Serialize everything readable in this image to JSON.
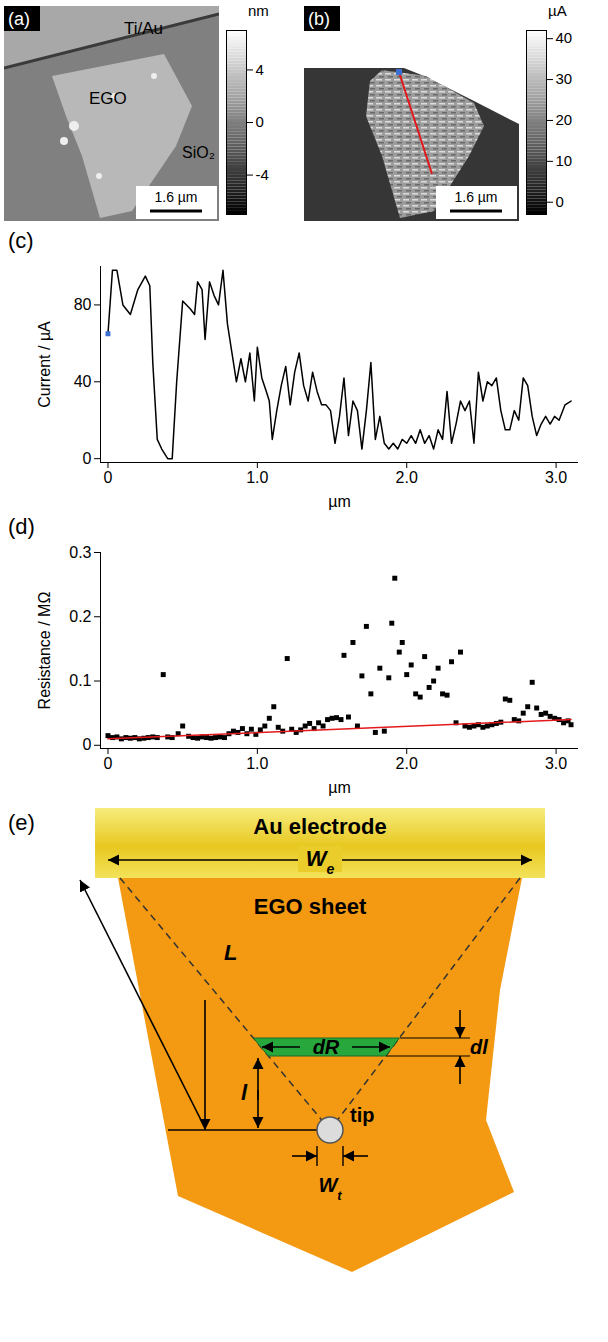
{
  "images": [
    {
      "panel": "(a)",
      "labels": [
        "Ti/Au",
        "EGO",
        "SiO₂"
      ],
      "scale_bar": "1.6 µm",
      "colorbar": {
        "label": "nm",
        "range": [
          -7,
          7
        ],
        "ticks": [
          4,
          0,
          -4
        ]
      }
    },
    {
      "panel": "(b)",
      "scale_bar": "1.6 µm",
      "colorbar": {
        "label": "µA",
        "range": [
          -3,
          42
        ],
        "ticks": [
          40,
          30,
          20,
          10,
          0
        ]
      }
    }
  ],
  "chart_data": [
    {
      "type": "line",
      "panel": "(c)",
      "x_label": "µm",
      "y_label": "Current / µA",
      "xlim": [
        -0.05,
        3.15
      ],
      "ylim": [
        -2,
        100
      ],
      "xticks": [
        0,
        {
          "value": 1,
          "label": "1.0"
        },
        {
          "value": 2,
          "label": "2.0"
        },
        {
          "value": 3,
          "label": "3.0"
        }
      ],
      "yticks": [
        0,
        40,
        80
      ],
      "x": [
        0,
        0.03,
        0.06,
        0.1,
        0.15,
        0.2,
        0.25,
        0.28,
        0.3,
        0.33,
        0.36,
        0.4,
        0.43,
        0.46,
        0.5,
        0.55,
        0.58,
        0.6,
        0.63,
        0.65,
        0.68,
        0.71,
        0.74,
        0.77,
        0.8,
        0.83,
        0.86,
        0.89,
        0.92,
        0.95,
        0.98,
        1.0,
        1.03,
        1.06,
        1.08,
        1.1,
        1.13,
        1.16,
        1.19,
        1.22,
        1.25,
        1.28,
        1.31,
        1.34,
        1.37,
        1.4,
        1.43,
        1.46,
        1.49,
        1.52,
        1.55,
        1.58,
        1.61,
        1.64,
        1.67,
        1.7,
        1.73,
        1.76,
        1.79,
        1.82,
        1.85,
        1.88,
        1.91,
        1.94,
        1.97,
        2.0,
        2.03,
        2.06,
        2.09,
        2.12,
        2.15,
        2.18,
        2.21,
        2.24,
        2.27,
        2.3,
        2.33,
        2.36,
        2.39,
        2.42,
        2.45,
        2.48,
        2.51,
        2.54,
        2.57,
        2.6,
        2.63,
        2.66,
        2.69,
        2.72,
        2.75,
        2.78,
        2.81,
        2.84,
        2.87,
        2.9,
        2.93,
        2.96,
        2.99,
        3.02,
        3.06,
        3.1
      ],
      "series": [
        {
          "color": "#000000",
          "values": [
            65,
            98,
            98,
            80,
            75,
            88,
            95,
            90,
            50,
            10,
            5,
            0,
            0,
            40,
            82,
            78,
            75,
            92,
            88,
            62,
            92,
            85,
            80,
            98,
            70,
            55,
            40,
            52,
            40,
            55,
            30,
            58,
            42,
            35,
            30,
            10,
            25,
            38,
            48,
            28,
            45,
            55,
            38,
            30,
            45,
            35,
            28,
            28,
            25,
            8,
            22,
            42,
            12,
            30,
            25,
            5,
            25,
            50,
            10,
            22,
            8,
            5,
            8,
            5,
            10,
            8,
            12,
            8,
            15,
            8,
            12,
            5,
            15,
            10,
            35,
            8,
            18,
            30,
            25,
            30,
            8,
            45,
            30,
            40,
            38,
            42,
            25,
            15,
            15,
            25,
            20,
            42,
            38,
            22,
            12,
            18,
            22,
            18,
            22,
            20,
            28,
            30
          ]
        },
        {
          "type": "scatter",
          "marker": "square",
          "color": "#3b6fd1",
          "x": [
            0
          ],
          "values": [
            65
          ]
        }
      ]
    },
    {
      "type": "scatter",
      "panel": "(d)",
      "x_label": "µm",
      "y_label": "Resistance / MΩ",
      "xlim": [
        -0.05,
        3.15
      ],
      "ylim": [
        -0.005,
        0.3
      ],
      "xticks": [
        0,
        {
          "value": 1,
          "label": "1.0"
        },
        {
          "value": 2,
          "label": "2.0"
        },
        {
          "value": 3,
          "label": "3.0"
        }
      ],
      "yticks": [
        0,
        0.1,
        0.2,
        0.3
      ],
      "series": [
        {
          "marker": "square",
          "color": "#000000",
          "x": [
            0,
            0.03,
            0.06,
            0.09,
            0.12,
            0.15,
            0.18,
            0.21,
            0.24,
            0.27,
            0.3,
            0.33,
            0.37,
            0.4,
            0.43,
            0.47,
            0.5,
            0.54,
            0.57,
            0.6,
            0.63,
            0.66,
            0.69,
            0.72,
            0.75,
            0.78,
            0.81,
            0.84,
            0.87,
            0.9,
            0.93,
            0.96,
            0.99,
            1.02,
            1.05,
            1.08,
            1.11,
            1.14,
            1.17,
            1.2,
            1.23,
            1.26,
            1.29,
            1.32,
            1.35,
            1.38,
            1.41,
            1.44,
            1.47,
            1.5,
            1.53,
            1.56,
            1.58,
            1.61,
            1.64,
            1.67,
            1.7,
            1.73,
            1.76,
            1.79,
            1.82,
            1.85,
            1.88,
            1.9,
            1.92,
            1.95,
            1.97,
            2.0,
            2.03,
            2.06,
            2.09,
            2.12,
            2.15,
            2.18,
            2.21,
            2.24,
            2.27,
            2.3,
            2.33,
            2.36,
            2.39,
            2.42,
            2.45,
            2.48,
            2.51,
            2.54,
            2.57,
            2.6,
            2.63,
            2.66,
            2.69,
            2.72,
            2.75,
            2.78,
            2.81,
            2.84,
            2.87,
            2.9,
            2.93,
            2.96,
            2.99,
            3.02,
            3.05,
            3.08,
            3.1
          ],
          "values": [
            0.015,
            0.012,
            0.013,
            0.01,
            0.012,
            0.011,
            0.012,
            0.01,
            0.011,
            0.012,
            0.013,
            0.012,
            0.11,
            0.013,
            0.012,
            0.018,
            0.03,
            0.014,
            0.012,
            0.011,
            0.013,
            0.012,
            0.011,
            0.012,
            0.013,
            0.012,
            0.018,
            0.022,
            0.02,
            0.026,
            0.018,
            0.025,
            0.017,
            0.024,
            0.03,
            0.042,
            0.06,
            0.028,
            0.022,
            0.135,
            0.025,
            0.02,
            0.024,
            0.03,
            0.034,
            0.026,
            0.035,
            0.03,
            0.04,
            0.042,
            0.043,
            0.04,
            0.14,
            0.044,
            0.16,
            0.03,
            0.108,
            0.185,
            0.08,
            0.02,
            0.12,
            0.022,
            0.105,
            0.19,
            0.26,
            0.145,
            0.16,
            0.11,
            0.125,
            0.08,
            0.075,
            0.138,
            0.09,
            0.1,
            0.12,
            0.08,
            0.078,
            0.13,
            0.035,
            0.145,
            0.03,
            0.028,
            0.03,
            0.032,
            0.028,
            0.03,
            0.032,
            0.034,
            0.036,
            0.072,
            0.07,
            0.04,
            0.038,
            0.05,
            0.06,
            0.098,
            0.058,
            0.048,
            0.05,
            0.045,
            0.042,
            0.04,
            0.035,
            0.038,
            0.032
          ]
        },
        {
          "type": "line",
          "color": "#e3191c",
          "x": [
            0,
            3.1
          ],
          "values": [
            0.01,
            0.04
          ]
        }
      ]
    }
  ],
  "diagram": {
    "panel": "(e)",
    "electrode": "Au electrode",
    "sheet": "EGO sheet",
    "tip": "tip",
    "dims": {
      "We": {
        "base": "W",
        "sub": "e"
      },
      "L": "L",
      "l": "l",
      "dR": "dR",
      "dl": "dl",
      "Wt": {
        "base": "W",
        "sub": "t"
      }
    }
  }
}
